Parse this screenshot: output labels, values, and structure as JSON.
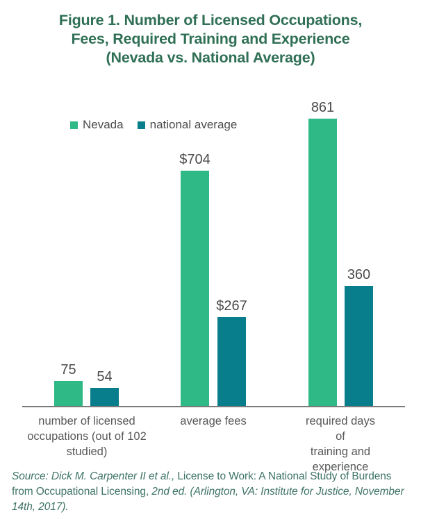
{
  "title": "Figure 1. Number of Licensed Occupations,\nFees, Required Training and Experience\n(Nevada vs. National Average)",
  "colors": {
    "nevada_green": "#2eb987",
    "national_teal": "#087e8c",
    "title_green": "#2f6f55",
    "source_green": "#3e7366",
    "text_gray": "#4b4b4b",
    "axis_label_gray": "#57585a",
    "axis_line_gray": "#7a7a7a"
  },
  "chart_data": {
    "type": "bar",
    "title": "Figure 1. Number of Licensed Occupations, Fees, Required Training and Experience (Nevada vs. National Average)",
    "categories": [
      "number of licensed\noccupations (out of 102\nstudied)",
      "average fees",
      "required days of\ntraining and experience"
    ],
    "series": [
      {
        "name": "Nevada",
        "color": "#2eb987",
        "values": [
          75,
          704,
          861
        ],
        "labels": [
          "75",
          "$704",
          "861"
        ]
      },
      {
        "name": "national average",
        "color": "#087e8c",
        "values": [
          54,
          267,
          360
        ],
        "labels": [
          "54",
          "$267",
          "360"
        ]
      }
    ],
    "ylim": [
      0,
      861
    ],
    "grid": false,
    "legend_position": "top-left",
    "xlabel": "",
    "ylabel": ""
  },
  "source": {
    "segments": [
      {
        "text": "Source: Dick M. Carpenter II et al.,",
        "italic": true
      },
      {
        "text": " License to Work: A National Study of Burdens from Occupational Licensing, ",
        "italic": false
      },
      {
        "text": "2nd ed. (Arlington, VA: Institute for Justice, November 14th, 2017).",
        "italic": true
      }
    ]
  }
}
